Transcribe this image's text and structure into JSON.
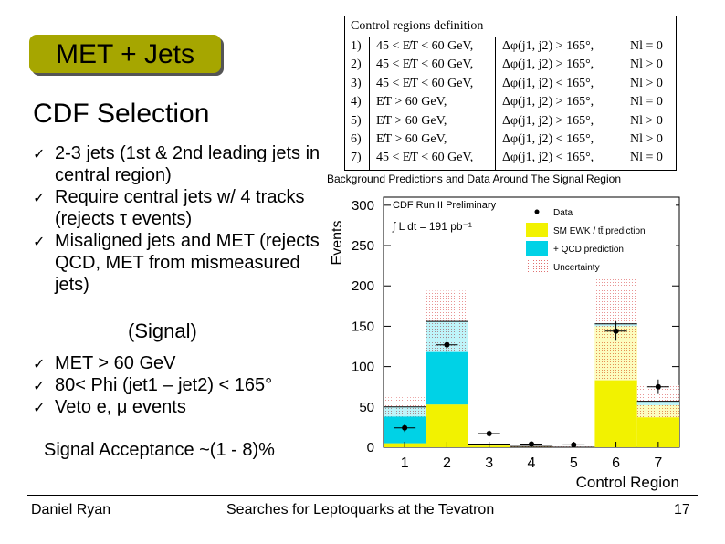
{
  "slide": {
    "title": "MET + Jets",
    "subtitle": "CDF Selection",
    "bullets": [
      "2-3 jets (1st & 2nd leading jets in central region)",
      "Require central jets w/ 4 tracks (rejects τ events)",
      "Misaligned jets and MET (rejects QCD, MET from mismeasured jets)"
    ],
    "signal_heading": "(Signal)",
    "signal_bullets": [
      "MET > 60 GeV",
      "80< Phi (jet1 – jet2) < 165°",
      "Veto e, μ events"
    ],
    "acceptance": "Signal Acceptance ~(1 - 8)%",
    "check_glyph": "✓",
    "footer": {
      "author": "Daniel Ryan",
      "talk": "Searches for Leptoquarks at the Tevatron",
      "page": "17"
    }
  },
  "control_table": {
    "title": "Control regions definition",
    "rows": [
      {
        "id": "1)",
        "met": "45 < E̸T < 60 GeV,",
        "dphi": "Δφ(j1, j2) > 165°,",
        "nl": "Nl = 0"
      },
      {
        "id": "2)",
        "met": "45 < E̸T < 60 GeV,",
        "dphi": "Δφ(j1, j2) > 165°,",
        "nl": "Nl > 0"
      },
      {
        "id": "3)",
        "met": "45 < E̸T < 60 GeV,",
        "dphi": "Δφ(j1, j2) < 165°,",
        "nl": "Nl > 0"
      },
      {
        "id": "4)",
        "met": "E̸T > 60 GeV,",
        "dphi": "Δφ(j1, j2) > 165°,",
        "nl": "Nl = 0"
      },
      {
        "id": "5)",
        "met": "E̸T > 60 GeV,",
        "dphi": "Δφ(j1, j2) > 165°,",
        "nl": "Nl > 0"
      },
      {
        "id": "6)",
        "met": "E̸T > 60 GeV,",
        "dphi": "Δφ(j1, j2) < 165°,",
        "nl": "Nl > 0"
      },
      {
        "id": "7)",
        "met": "45 < E̸T < 60 GeV,",
        "dphi": "Δφ(j1, j2) < 165°,",
        "nl": "Nl = 0"
      }
    ]
  },
  "chart_data": {
    "type": "bar",
    "title": "Background Predictions and Data Around The Signal Region",
    "xlabel": "Control Region",
    "ylabel": "Events",
    "categories": [
      "1",
      "2",
      "3",
      "4",
      "5",
      "6",
      "7"
    ],
    "ylim": [
      0,
      310
    ],
    "yticks": [
      0,
      50,
      100,
      150,
      200,
      250,
      300
    ],
    "stacked": true,
    "series": [
      {
        "name": "SM EWK / tt̄ prediction",
        "color": "#f2f200",
        "values": [
          5,
          53,
          3,
          1,
          0,
          150,
          52
        ]
      },
      {
        "name": "QCD prediction",
        "color": "#00d2e6",
        "values": [
          45,
          103,
          1,
          0,
          0,
          3,
          5
        ]
      }
    ],
    "data": {
      "name": "Data",
      "values": [
        24,
        127,
        17,
        4,
        3,
        144,
        75
      ],
      "errors": [
        5,
        11,
        4,
        2,
        2,
        12,
        9
      ]
    },
    "uncertainty": {
      "name": "Uncertainty",
      "values": [
        12,
        38,
        2,
        1,
        1,
        70,
        20
      ]
    },
    "legend": {
      "header": "CDF Run II Preliminary",
      "lumi": "∫ L dt = 191 pb⁻¹",
      "position": "top"
    }
  }
}
